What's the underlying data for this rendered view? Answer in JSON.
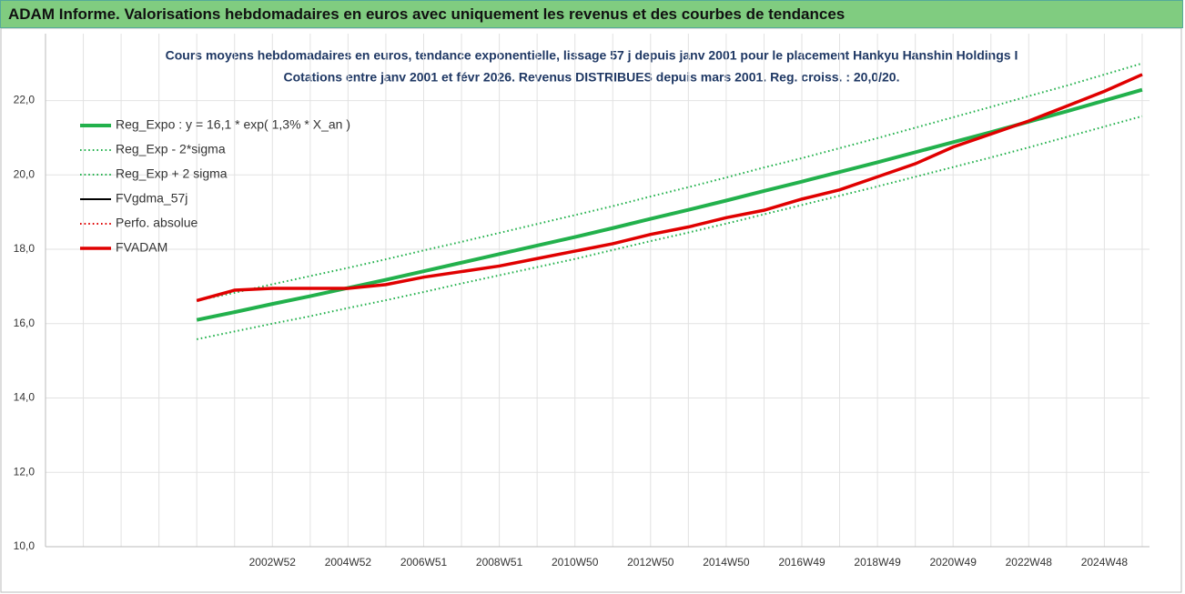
{
  "page_title": "ADAM Informe. Valorisations hebdomadaires en euros avec uniquement les revenus et des courbes de tendances",
  "chart_data": {
    "type": "line",
    "title": "Cours moyens hebdomadaires en euros, tendance exponentielle, lissage 57 j depuis janv 2001 pour le placement Hankyu Hanshin Holdings I",
    "subtitle": "Cotations entre janv 2001 et févr 2026. Revenus DISTRIBUES depuis mars 2001. Reg. croiss. : 20,0/20.",
    "categories": [
      null,
      null,
      null,
      null,
      null,
      null,
      "2002W52",
      null,
      "2004W52",
      null,
      "2006W51",
      null,
      "2008W51",
      null,
      "2010W50",
      null,
      "2012W50",
      null,
      "2014W50",
      null,
      "2016W49",
      null,
      "2018W49",
      null,
      "2020W49",
      null,
      "2022W48",
      null,
      "2024W48",
      null
    ],
    "ylim": [
      10,
      23.8
    ],
    "yticks": [
      {
        "value": 10,
        "label": "10,0"
      },
      {
        "value": 12,
        "label": "12,0"
      },
      {
        "value": 14,
        "label": "14,0"
      },
      {
        "value": 16,
        "label": "16,0"
      },
      {
        "value": 18,
        "label": "18,0"
      },
      {
        "value": 20,
        "label": "20,0"
      },
      {
        "value": 22,
        "label": "22,0"
      }
    ],
    "grid": true,
    "legend": "top-left",
    "series": [
      {
        "name": "Reg_Expo : y = 16,1 * exp( 1,3% *  X_an )",
        "color": "#22b14c",
        "style": "solid",
        "width": 4,
        "values": [
          null,
          null,
          null,
          null,
          16.1,
          16.31,
          16.53,
          16.74,
          16.96,
          17.18,
          17.41,
          17.64,
          17.87,
          18.1,
          18.33,
          18.57,
          18.82,
          19.06,
          19.31,
          19.57,
          19.82,
          20.08,
          20.34,
          20.61,
          20.88,
          21.15,
          21.43,
          21.71,
          22.0,
          22.29
        ]
      },
      {
        "name": "Reg_Exp - 2*sigma",
        "color": "#22b14c",
        "style": "dotted",
        "width": 2,
        "values": [
          null,
          null,
          null,
          null,
          15.58,
          15.79,
          16.0,
          16.2,
          16.42,
          16.63,
          16.85,
          17.08,
          17.3,
          17.52,
          17.74,
          17.98,
          18.22,
          18.45,
          18.69,
          18.94,
          19.19,
          19.44,
          19.69,
          19.95,
          20.21,
          20.47,
          20.74,
          21.02,
          21.3,
          21.58
        ]
      },
      {
        "name": "Reg_Exp + 2 sigma",
        "color": "#22b14c",
        "style": "dotted",
        "width": 2,
        "values": [
          null,
          null,
          null,
          null,
          16.62,
          16.83,
          17.06,
          17.28,
          17.5,
          17.73,
          17.97,
          18.2,
          18.44,
          18.68,
          18.92,
          19.16,
          19.42,
          19.67,
          19.93,
          20.2,
          20.45,
          20.72,
          20.99,
          21.27,
          21.55,
          21.83,
          22.12,
          22.4,
          22.7,
          23.0
        ]
      },
      {
        "name": "FVgdma_57j",
        "color": "#000000",
        "style": "solid",
        "width": 2,
        "values": [
          null,
          null,
          null,
          null,
          16.62,
          16.9,
          16.95,
          16.95,
          16.95,
          17.05,
          17.25,
          17.4,
          17.55,
          17.75,
          17.95,
          18.15,
          18.4,
          18.6,
          18.85,
          19.05,
          19.35,
          19.6,
          19.95,
          20.3,
          20.75,
          21.1,
          21.45,
          21.85,
          22.25,
          22.7
        ]
      },
      {
        "name": "Perfo. absolue",
        "color": "#e00000",
        "style": "dotted",
        "width": 2,
        "values": [
          null,
          null,
          null,
          null,
          16.62,
          16.9,
          16.95,
          16.95,
          16.95,
          17.05,
          17.25,
          17.4,
          17.55,
          17.75,
          17.95,
          18.15,
          18.4,
          18.6,
          18.85,
          19.05,
          19.35,
          19.6,
          19.95,
          20.3,
          20.75,
          21.1,
          21.45,
          21.85,
          22.25,
          22.7
        ]
      },
      {
        "name": "FVADAM",
        "color": "#e00000",
        "style": "solid",
        "width": 3.5,
        "values": [
          null,
          null,
          null,
          null,
          16.62,
          16.9,
          16.95,
          16.95,
          16.95,
          17.05,
          17.25,
          17.4,
          17.55,
          17.75,
          17.95,
          18.15,
          18.4,
          18.6,
          18.85,
          19.05,
          19.35,
          19.6,
          19.95,
          20.3,
          20.75,
          21.1,
          21.45,
          21.85,
          22.25,
          22.7
        ]
      }
    ]
  }
}
